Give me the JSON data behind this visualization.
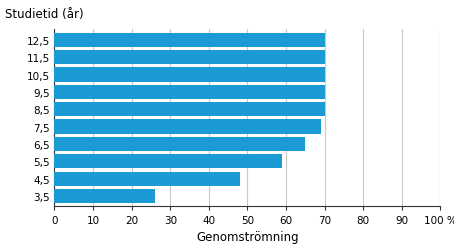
{
  "categories": [
    "3,5",
    "4,5",
    "5,5",
    "6,5",
    "7,5",
    "8,5",
    "9,5",
    "10,5",
    "11,5",
    "12,5"
  ],
  "values": [
    26,
    48,
    59,
    65,
    69,
    70,
    70,
    70,
    70,
    70
  ],
  "bar_color": "#1b9ad4",
  "ylabel": "Studietid (år)",
  "xlabel": "Genomströmning",
  "xlim": [
    0,
    100
  ],
  "xticks": [
    0,
    10,
    20,
    30,
    40,
    50,
    60,
    70,
    80,
    90,
    100
  ],
  "xtick_label_last": "100 %",
  "grid_color": "#c8c8c8",
  "background_color": "#ffffff",
  "bar_height": 0.82,
  "ylabel_fontsize": 8.5,
  "xlabel_fontsize": 8.5,
  "tick_fontsize": 7.5
}
